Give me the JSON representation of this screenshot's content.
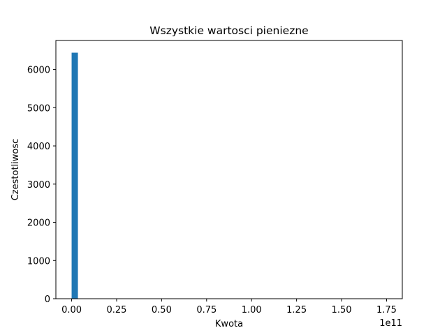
{
  "chart_data": {
    "type": "bar",
    "title": "Wszystkie wartosci pieniezne",
    "xlabel": "Kwota",
    "ylabel": "Czestotliwosc",
    "x_offset_label": "1e11",
    "x_scale": 100000000000,
    "xlim": [
      -0.0875,
      1.8375
    ],
    "ylim": [
      0,
      6760
    ],
    "x_ticks": [
      0.0,
      0.25,
      0.5,
      0.75,
      1.0,
      1.25,
      1.5,
      1.75
    ],
    "x_tick_labels": [
      "0.00",
      "0.25",
      "0.50",
      "0.75",
      "1.00",
      "1.25",
      "1.50",
      "1.75"
    ],
    "y_ticks": [
      0,
      1000,
      2000,
      3000,
      4000,
      5000,
      6000
    ],
    "y_tick_labels": [
      "0",
      "1000",
      "2000",
      "3000",
      "4000",
      "5000",
      "6000"
    ],
    "bins": [
      {
        "x0": 0.0,
        "x1": 0.035,
        "count": 6440
      }
    ],
    "grid": false,
    "bar_color": "#1f77b4"
  }
}
